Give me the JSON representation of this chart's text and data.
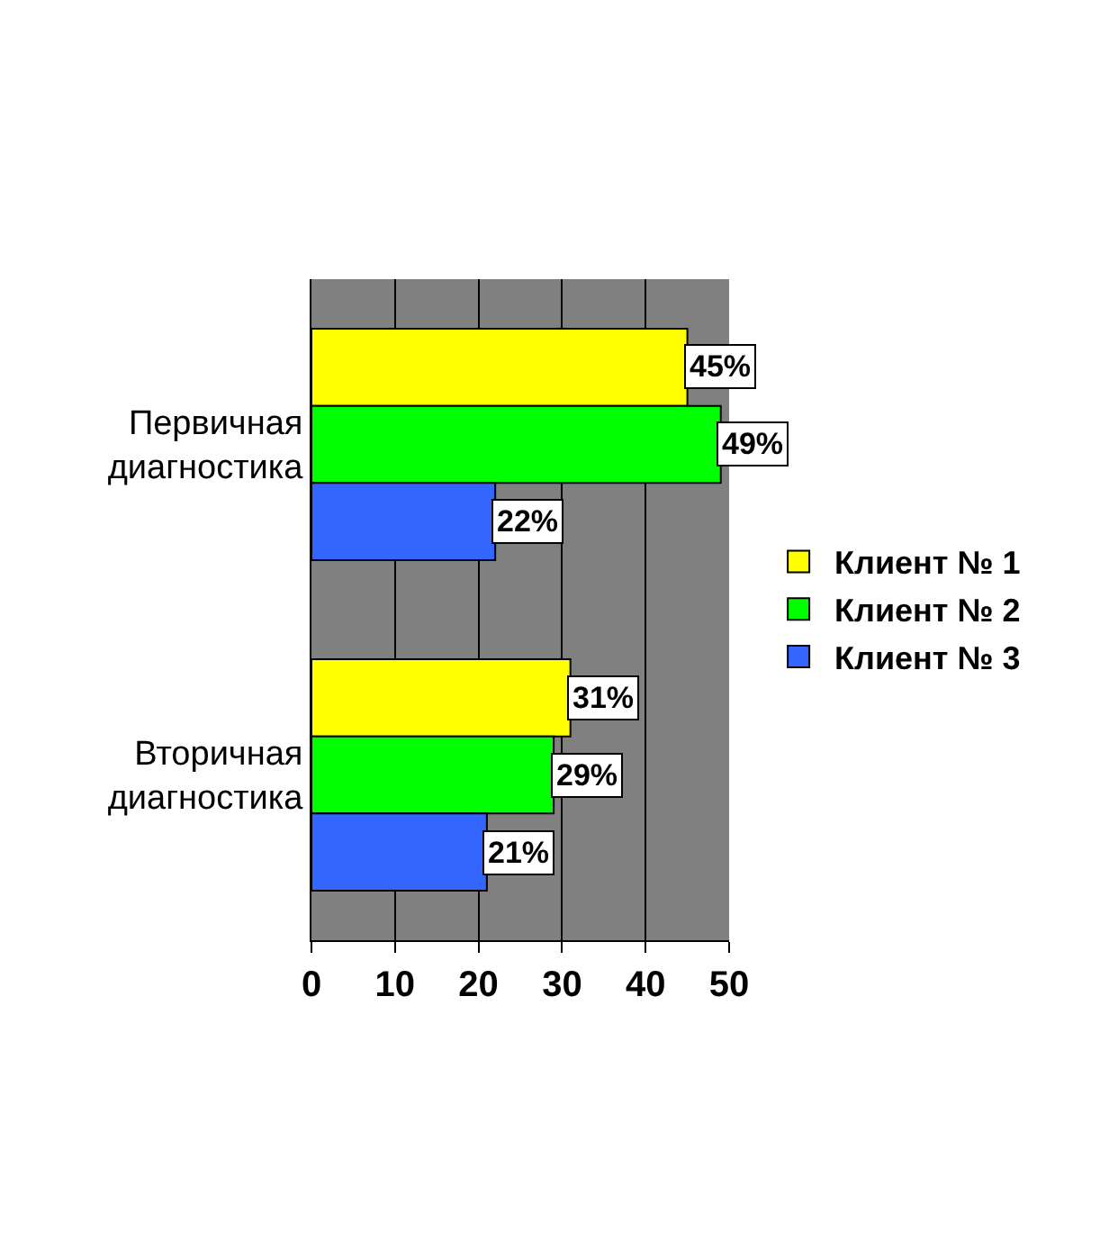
{
  "chart_data": {
    "type": "bar",
    "orientation": "horizontal",
    "categories": [
      "Первичная диагностика",
      "Вторичная диагностика"
    ],
    "series": [
      {
        "name": "Клиент № 1",
        "color": "#ffff00",
        "values": [
          45,
          31
        ],
        "value_labels": [
          "45%",
          "31%"
        ]
      },
      {
        "name": "Клиент № 2",
        "color": "#00ff00",
        "values": [
          49,
          29
        ],
        "value_labels": [
          "49%",
          "29%"
        ]
      },
      {
        "name": "Клиент № 3",
        "color": "#3366ff",
        "values": [
          22,
          21
        ],
        "value_labels": [
          "22%",
          "21%"
        ]
      }
    ],
    "xlim": [
      0,
      50
    ],
    "xticks": [
      0,
      10,
      20,
      30,
      40,
      50
    ],
    "grid": "x",
    "legend": "right"
  }
}
